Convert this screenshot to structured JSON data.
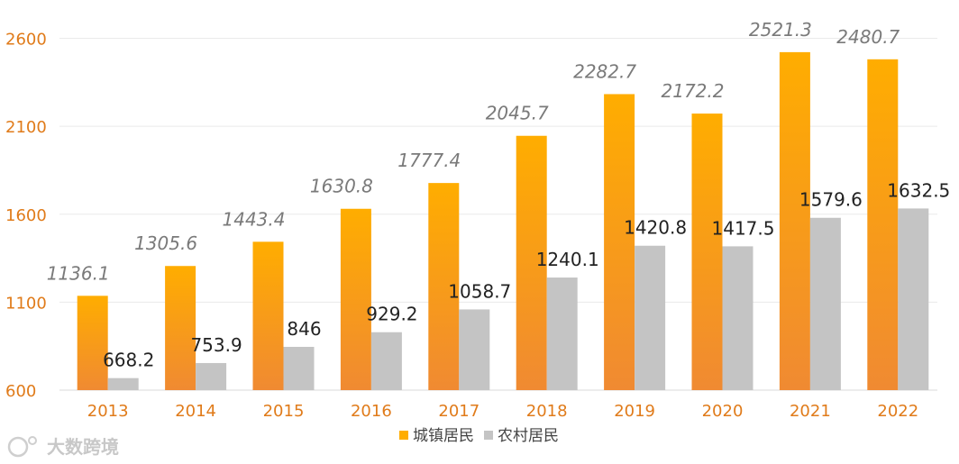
{
  "chart_data": {
    "type": "bar",
    "categories": [
      "2013",
      "2014",
      "2015",
      "2016",
      "2017",
      "2018",
      "2019",
      "2020",
      "2021",
      "2022"
    ],
    "series": [
      {
        "name": "城镇居民",
        "values": [
          1136.1,
          1305.6,
          1443.4,
          1630.8,
          1777.4,
          2045.7,
          2282.7,
          2172.2,
          2521.3,
          2480.7
        ],
        "labels": [
          "1136.1",
          "1305.6",
          "1443.4",
          "1630.8",
          "1777.4",
          "2045.7",
          "2282.7",
          "2172.2",
          "2521.3",
          "2480.7"
        ]
      },
      {
        "name": "农村居民",
        "values": [
          668.2,
          753.9,
          846,
          929.2,
          1058.7,
          1240.1,
          1420.8,
          1417.5,
          1579.6,
          1632.5
        ],
        "labels": [
          "668.2",
          "753.9",
          "846",
          "929.2",
          "1058.7",
          "1240.1",
          "1420.8",
          "1417.5",
          "1579.6",
          "1632.5"
        ]
      }
    ],
    "yticks": [
      "600",
      "1100",
      "1600",
      "2100",
      "2600"
    ],
    "ylim": [
      600,
      2700
    ],
    "grid": true,
    "legend": "bottom-center",
    "colors": {
      "urban_top": "#ffad00",
      "urban_bottom": "#f08a32",
      "rural": "#c4c4c4",
      "tick": "#e07b1a",
      "grid": "#eaeaea"
    }
  },
  "watermark": {
    "text": "大数跨境"
  }
}
